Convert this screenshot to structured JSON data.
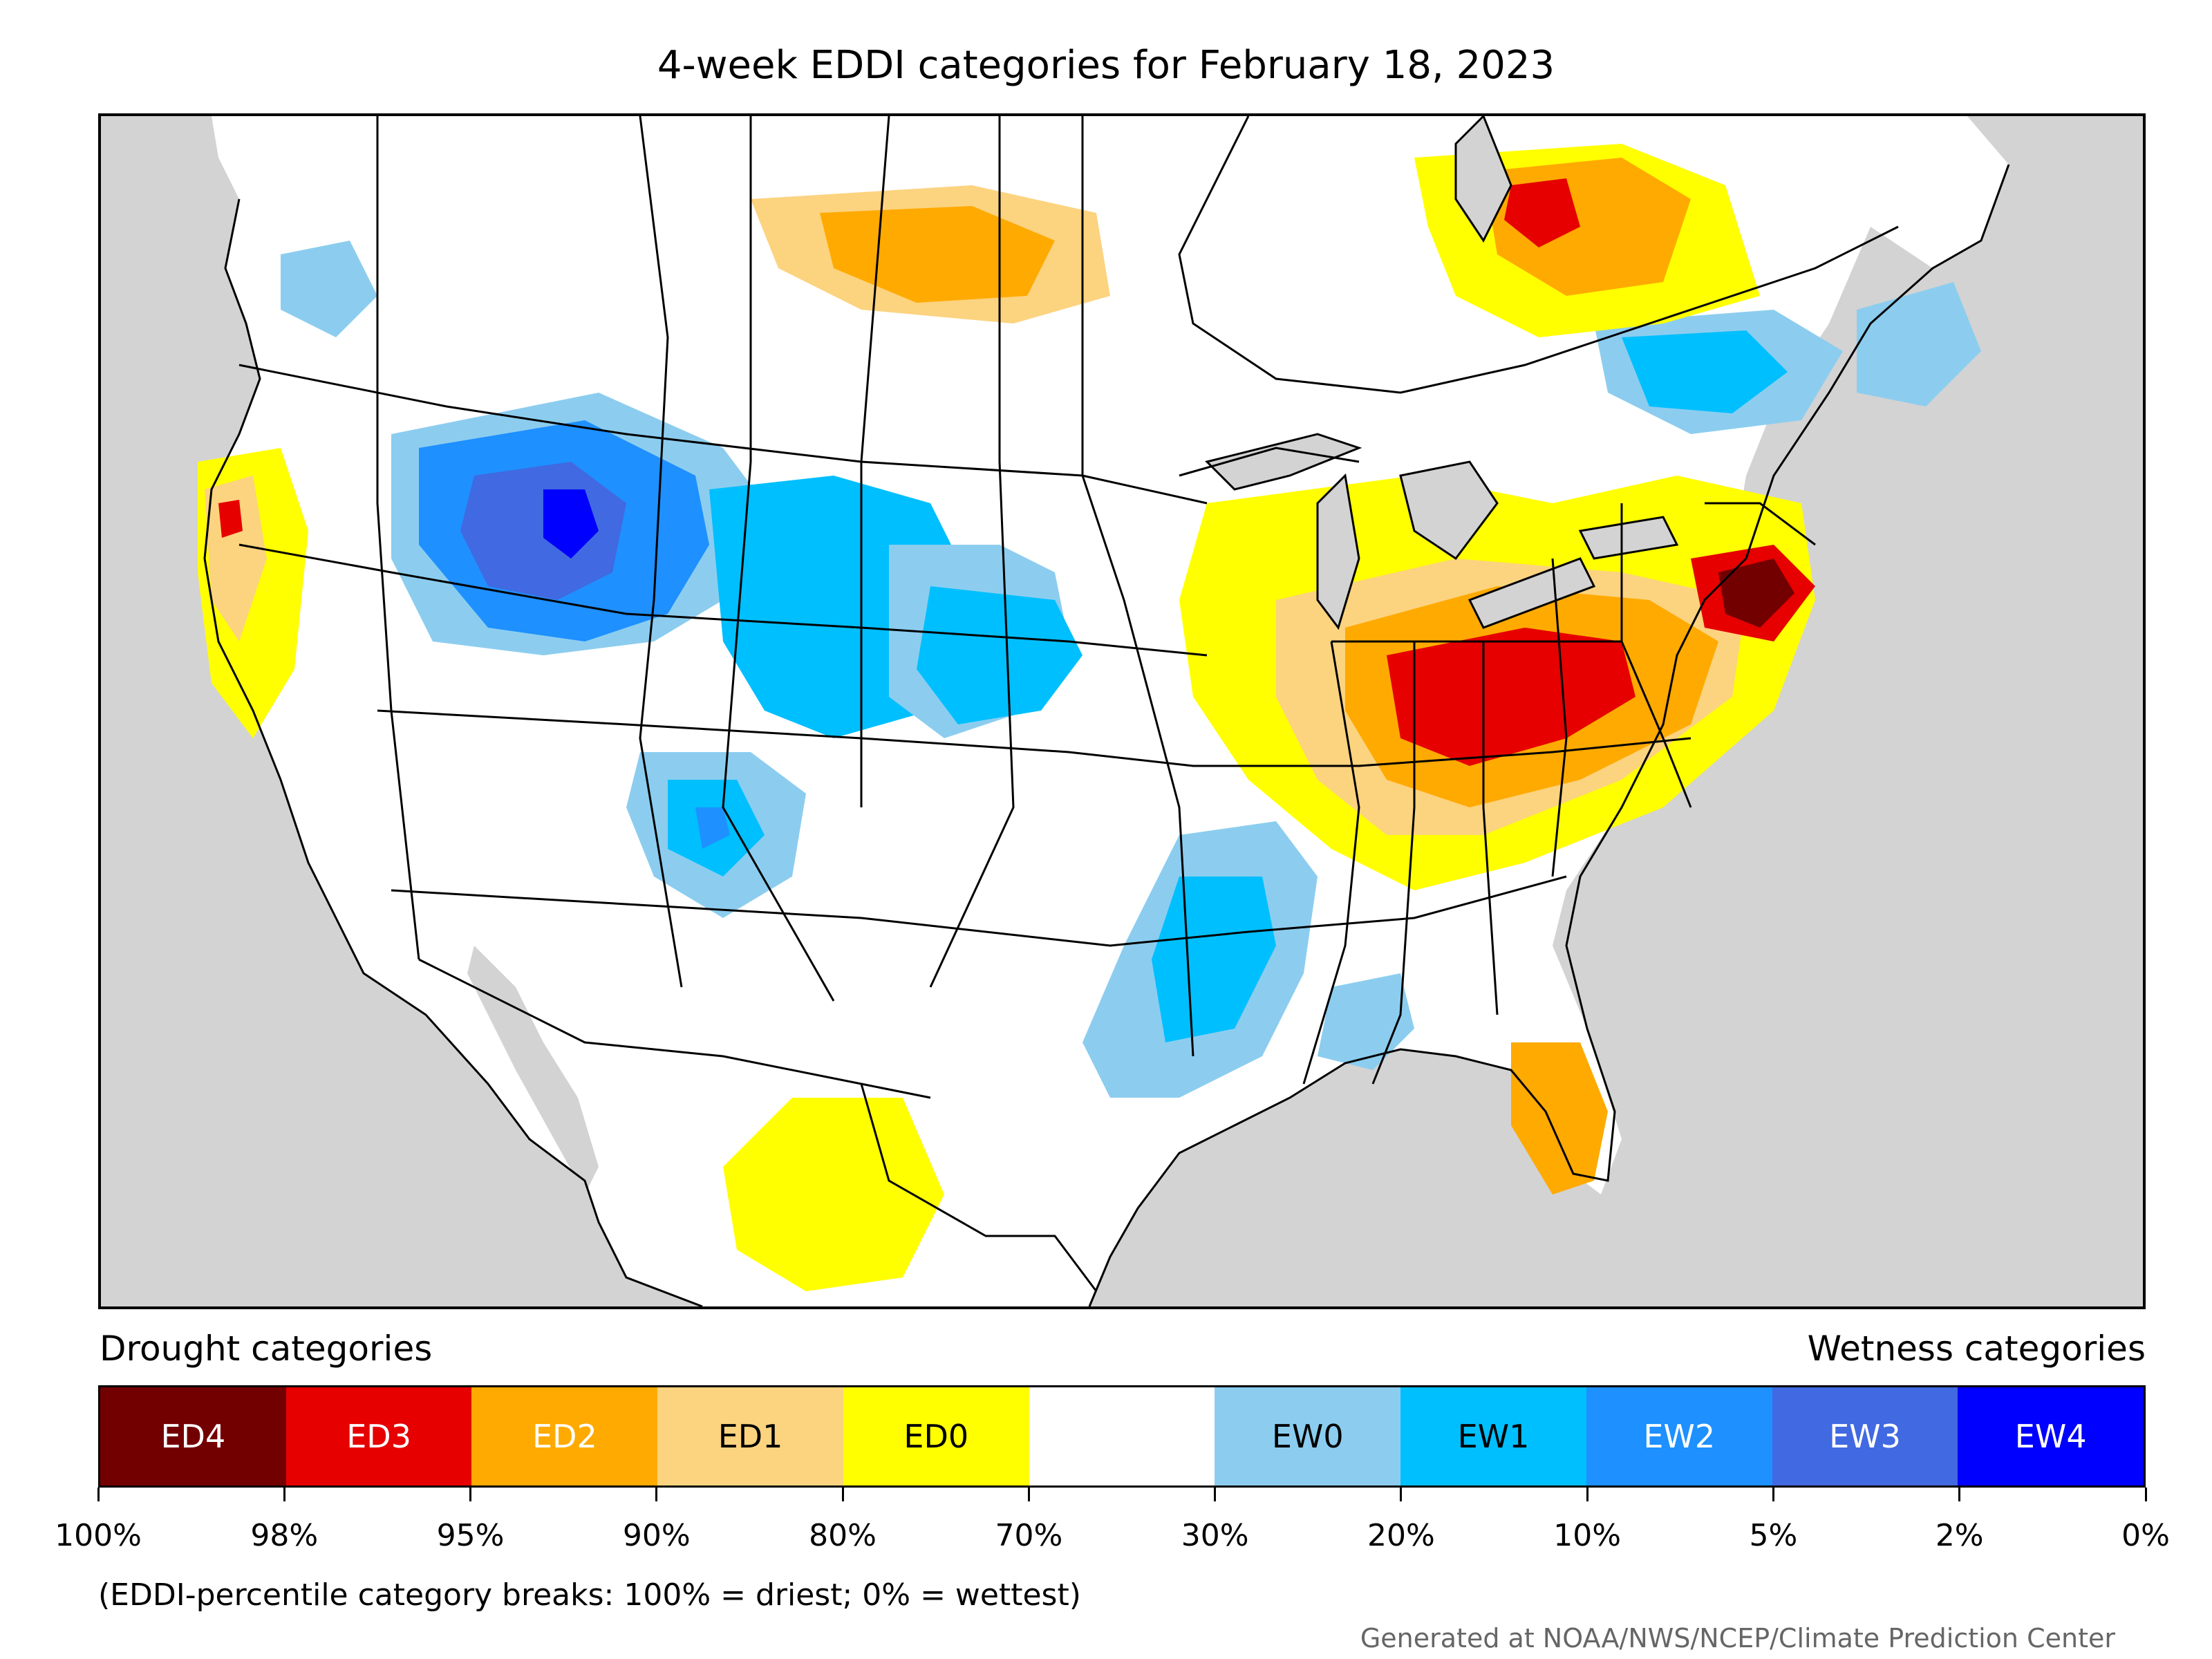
{
  "title": "4-week EDDI categories for February 18, 2023",
  "map": {
    "ocean_color": "#d3d3d3",
    "land_color": "#ffffff",
    "lake_color": "#d3d3d3",
    "border_color": "#000000"
  },
  "legend": {
    "drought_label": "Drought categories",
    "wetness_label": "Wetness categories",
    "categories": [
      {
        "label": "ED4",
        "color": "#730000",
        "text_color": "#ffffff"
      },
      {
        "label": "ED3",
        "color": "#e60000",
        "text_color": "#ffffff"
      },
      {
        "label": "ED2",
        "color": "#ffaa00",
        "text_color": "#ffffff"
      },
      {
        "label": "ED1",
        "color": "#fcd37f",
        "text_color": "#000000"
      },
      {
        "label": "ED0",
        "color": "#ffff00",
        "text_color": "#000000"
      },
      {
        "label": "",
        "color": "#ffffff",
        "text_color": "#000000"
      },
      {
        "label": "EW0",
        "color": "#8ccdef",
        "text_color": "#000000"
      },
      {
        "label": "EW1",
        "color": "#00bfff",
        "text_color": "#000000"
      },
      {
        "label": "EW2",
        "color": "#1e90ff",
        "text_color": "#ffffff"
      },
      {
        "label": "EW3",
        "color": "#4169e1",
        "text_color": "#ffffff"
      },
      {
        "label": "EW4",
        "color": "#0000ff",
        "text_color": "#ffffff"
      }
    ],
    "tick_labels": [
      "100%",
      "98%",
      "95%",
      "90%",
      "80%",
      "70%",
      "30%",
      "20%",
      "10%",
      "5%",
      "2%",
      "0%"
    ]
  },
  "note": "(EDDI-percentile category breaks: 100% = driest; 0% = wettest)",
  "credit": "Generated at NOAA/NWS/NCEP/Climate Prediction Center"
}
